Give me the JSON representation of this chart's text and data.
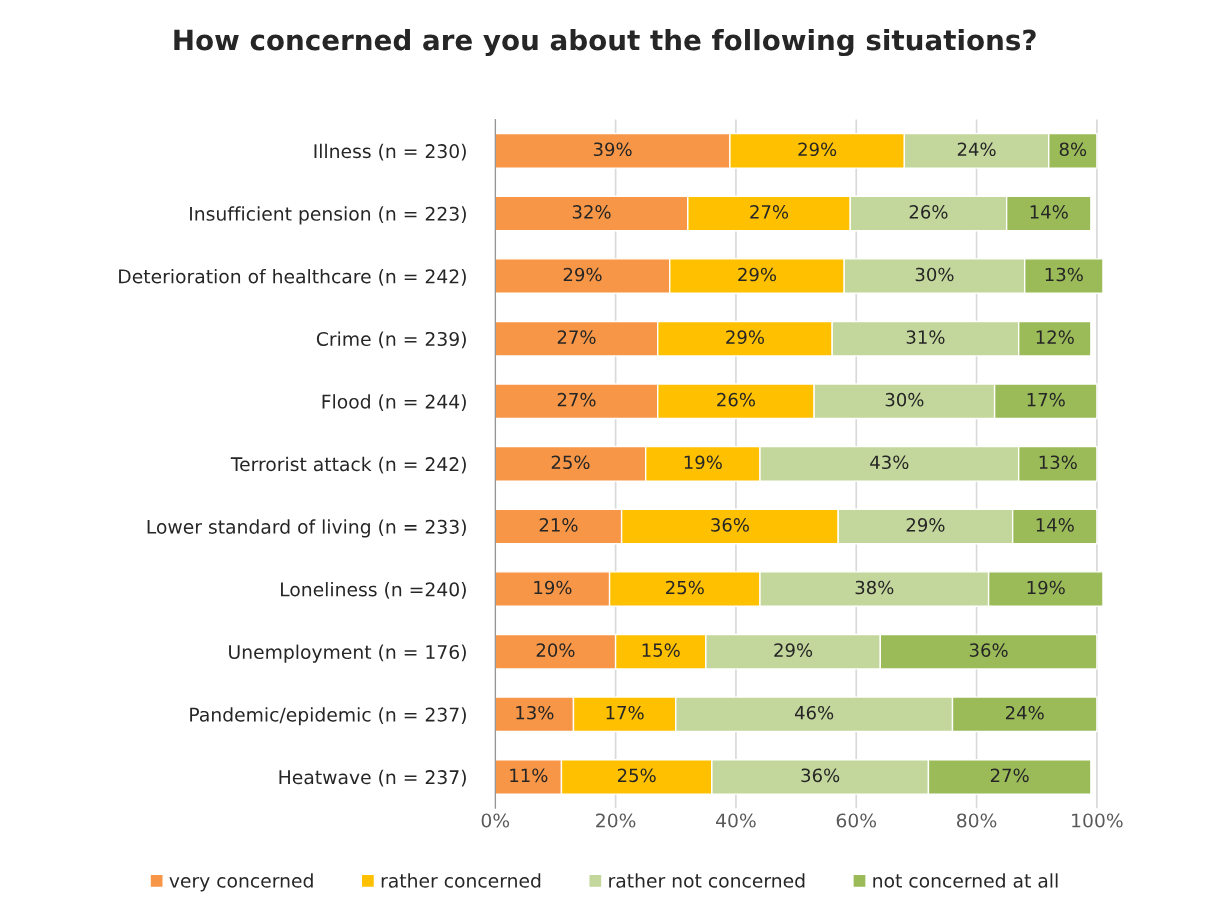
{
  "chart_data": {
    "type": "bar",
    "orientation": "horizontal",
    "stacked": true,
    "title": "How concerned are you about the following situations?",
    "categories": [
      "Illness (n = 230)",
      "Insufficient pension (n = 223)",
      "Deterioration of healthcare (n = 242)",
      "Crime (n = 239)",
      "Flood (n = 244)",
      "Terrorist attack (n = 242)",
      "Lower standard of living (n = 233)",
      "Loneliness (n =240)",
      "Unemployment (n = 176)",
      "Pandemic/epidemic (n = 237)",
      "Heatwave (n = 237)"
    ],
    "series": [
      {
        "name": "very concerned",
        "color": "#f79646",
        "values": [
          39,
          32,
          29,
          27,
          27,
          25,
          21,
          19,
          20,
          13,
          11
        ],
        "value_labels": [
          "39%",
          "32%",
          "29%",
          "27%",
          "27%",
          "25%",
          "21%",
          "19%",
          "20%",
          "13%",
          "11%"
        ]
      },
      {
        "name": "rather concerned",
        "color": "#ffc000",
        "values": [
          29,
          27,
          29,
          29,
          26,
          19,
          36,
          25,
          15,
          17,
          25
        ],
        "value_labels": [
          "29%",
          "27%",
          "29%",
          "29%",
          "26%",
          "19%",
          "36%",
          "25%",
          "15%",
          "17%",
          "25%"
        ]
      },
      {
        "name": "rather not concerned",
        "color": "#c3d69b",
        "values": [
          24,
          26,
          30,
          31,
          30,
          43,
          29,
          38,
          29,
          46,
          36
        ],
        "value_labels": [
          "24%",
          "26%",
          "30%",
          "31%",
          "30%",
          "43%",
          "29%",
          "38%",
          "29%",
          "46%",
          "36%"
        ]
      },
      {
        "name": "not concerned at all",
        "color": "#9bbb59",
        "values": [
          8,
          14,
          13,
          12,
          17,
          13,
          14,
          19,
          36,
          24,
          27
        ],
        "value_labels": [
          "8%",
          "14%",
          "13%",
          "12%",
          "17%",
          "13%",
          "14%",
          "19%",
          "36%",
          "24%",
          "27%"
        ]
      }
    ],
    "xlim": [
      0,
      101
    ],
    "xticks": [
      {
        "value": 0,
        "label": "0%"
      },
      {
        "value": 20,
        "label": "20%"
      },
      {
        "value": 40,
        "label": "40%"
      },
      {
        "value": 60,
        "label": "60%"
      },
      {
        "value": 80,
        "label": "80%"
      },
      {
        "value": 100,
        "label": "100%"
      }
    ],
    "grid": "x",
    "legend": "bottom"
  }
}
